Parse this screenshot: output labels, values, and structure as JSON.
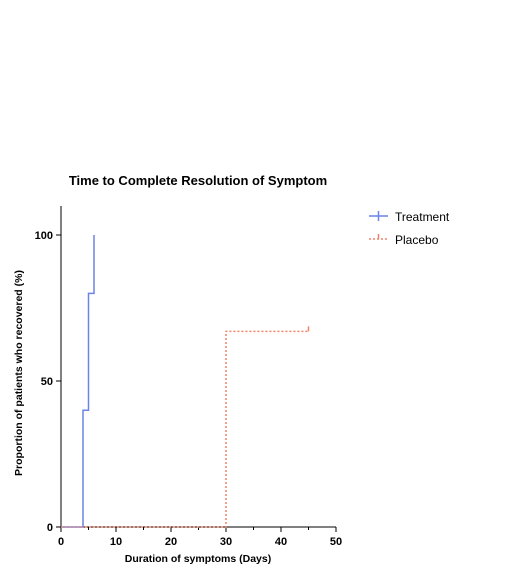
{
  "colors": {
    "treatment": "#6b84e6",
    "placebo": "#f0826a",
    "axis": "#000000"
  },
  "chart_data": {
    "type": "line",
    "subtype": "kaplan-meier-step",
    "title": "Time to Complete Resolution of Symptom",
    "xlabel": "Duration of symptoms (Days)",
    "ylabel": "Proportion of patients who recovered (%)",
    "xlim": [
      0,
      50
    ],
    "ylim": [
      0,
      100
    ],
    "xticks": [
      0,
      10,
      20,
      30,
      40,
      50
    ],
    "yticks": [
      0,
      50,
      100
    ],
    "legend_position": "top-right",
    "grid": false,
    "series": [
      {
        "name": "Treatment",
        "style": "solid",
        "color": "#6b84e6",
        "points": [
          [
            0,
            0
          ],
          [
            4,
            0
          ],
          [
            4,
            40
          ],
          [
            5,
            40
          ],
          [
            5,
            80
          ],
          [
            6,
            80
          ],
          [
            6,
            100
          ]
        ],
        "censored": []
      },
      {
        "name": "Placebo",
        "style": "dotted",
        "color": "#f0826a",
        "points": [
          [
            0,
            0
          ],
          [
            30,
            0
          ],
          [
            30,
            67
          ],
          [
            45,
            67
          ]
        ],
        "censored": [
          [
            45,
            67
          ]
        ]
      }
    ]
  }
}
